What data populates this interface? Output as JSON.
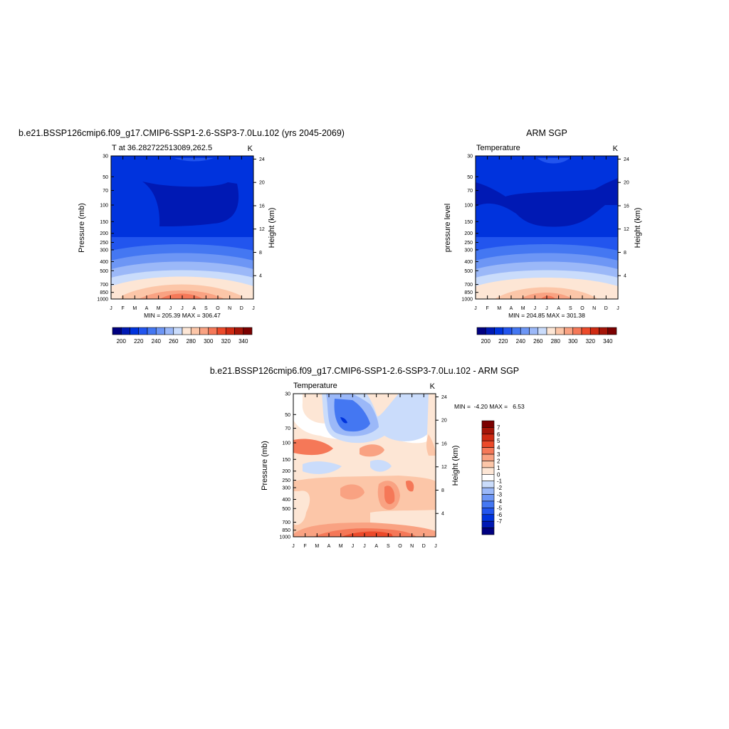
{
  "colors": {
    "abs_levels": [
      "#000080",
      "#0019b4",
      "#0033dd",
      "#2255ee",
      "#4477f2",
      "#6d96f5",
      "#9bb8f8",
      "#cadcfb",
      "#fde6d5",
      "#fcc6a8",
      "#f9a282",
      "#f57858",
      "#ec4a2a",
      "#cf2a12",
      "#a51508",
      "#7b0000"
    ],
    "diff_levels": [
      "#000080",
      "#0019b4",
      "#0033dd",
      "#2255ee",
      "#4477f2",
      "#6d96f5",
      "#9bb8f8",
      "#cadcfb",
      "#ffffff",
      "#fde6d5",
      "#fcc6a8",
      "#f9a282",
      "#f57858",
      "#ec4a2a",
      "#cf2a12",
      "#a51508",
      "#7b0000"
    ]
  },
  "chart_data": [
    {
      "type": "heatmap",
      "title": "b.e21.BSSP126cmip6.f09_g17.CMIP6-SSP1-2.6-SSP3-7.0Lu.102 (yrs 2045-2069)",
      "subtitle_left": "T at 36.282722513089,262.5",
      "subtitle_right": "K",
      "ylabel": "Pressure (mb)",
      "ylabel_right": "Height (km)",
      "x_ticks": [
        "J",
        "F",
        "M",
        "A",
        "M",
        "J",
        "J",
        "A",
        "S",
        "O",
        "N",
        "D",
        "J"
      ],
      "y_ticks": [
        "30",
        "50",
        "70",
        "100",
        "150",
        "200",
        "250",
        "300",
        "400",
        "500",
        "700",
        "850",
        "1000"
      ],
      "y_ticks_right": [
        "24",
        "20",
        "16",
        "12",
        "8",
        "4"
      ],
      "y_scale": "log",
      "min_max_label": "MIN = 205.39 MAX = 306.47",
      "colorbar_labels": [
        "200",
        "220",
        "240",
        "260",
        "280",
        "300",
        "320",
        "340"
      ],
      "levels": [
        200,
        210,
        220,
        230,
        240,
        250,
        260,
        270,
        280,
        290,
        300,
        310,
        320,
        330,
        340
      ],
      "values_min": 205.39,
      "values_max": 306.47
    },
    {
      "type": "heatmap",
      "title": "ARM SGP",
      "subtitle_left": "Temperature",
      "subtitle_right": "K",
      "ylabel": "pressure level",
      "ylabel_right": "Height (km)",
      "x_ticks": [
        "J",
        "F",
        "M",
        "A",
        "M",
        "J",
        "J",
        "A",
        "S",
        "O",
        "N",
        "D",
        "J"
      ],
      "y_ticks": [
        "30",
        "50",
        "70",
        "100",
        "150",
        "200",
        "250",
        "300",
        "400",
        "500",
        "700",
        "850",
        "1000"
      ],
      "y_ticks_right": [
        "24",
        "20",
        "16",
        "12",
        "8",
        "4"
      ],
      "y_scale": "log",
      "min_max_label": "MIN = 204.85 MAX = 301.38",
      "colorbar_labels": [
        "200",
        "220",
        "240",
        "260",
        "280",
        "300",
        "320",
        "340"
      ],
      "levels": [
        200,
        210,
        220,
        230,
        240,
        250,
        260,
        270,
        280,
        290,
        300,
        310,
        320,
        330,
        340
      ],
      "values_min": 204.85,
      "values_max": 301.38
    },
    {
      "type": "heatmap",
      "title": "b.e21.BSSP126cmip6.f09_g17.CMIP6-SSP1-2.6-SSP3-7.0Lu.102 - ARM SGP",
      "subtitle_left": "Temperature",
      "subtitle_right": "K",
      "ylabel": "Pressure (mb)",
      "ylabel_right": "Height (km)",
      "x_ticks": [
        "J",
        "F",
        "M",
        "A",
        "M",
        "J",
        "J",
        "A",
        "S",
        "O",
        "N",
        "D",
        "J"
      ],
      "y_ticks": [
        "30",
        "50",
        "70",
        "100",
        "150",
        "200",
        "250",
        "300",
        "400",
        "500",
        "700",
        "850",
        "1000"
      ],
      "y_ticks_right": [
        "24",
        "20",
        "16",
        "12",
        "8",
        "4"
      ],
      "y_scale": "log",
      "min_max_label": "MIN =  -4.20 MAX =   6.53",
      "colorbar_labels": [
        "7",
        "6",
        "5",
        "4",
        "3",
        "2",
        "1",
        "0",
        "-1",
        "-2",
        "-3",
        "-4",
        "-5",
        "-6",
        "-7"
      ],
      "levels": [
        -7,
        -6,
        -5,
        -4,
        -3,
        -2,
        -1,
        0,
        1,
        2,
        3,
        4,
        5,
        6,
        7
      ],
      "values_min": -4.2,
      "values_max": 6.53
    }
  ]
}
